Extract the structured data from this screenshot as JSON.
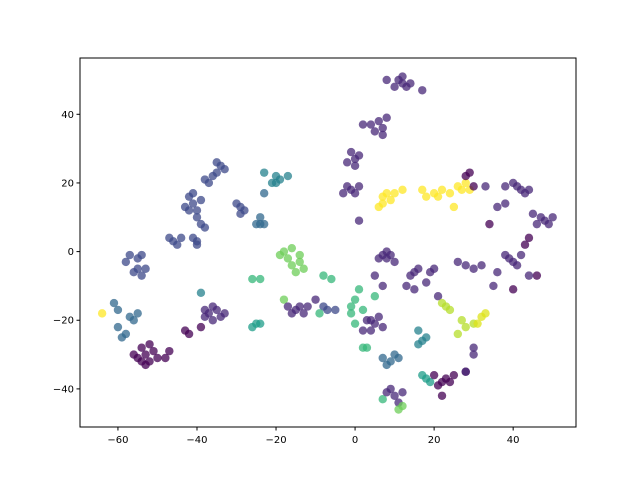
{
  "chart_data": {
    "type": "scatter",
    "x": [
      -53,
      -54,
      -52,
      -55,
      -51,
      -53,
      -56,
      -50,
      -52,
      -54,
      -47,
      -48,
      -42,
      -43,
      -39,
      -60,
      -57,
      -60,
      -58,
      -55,
      -61,
      -56,
      -59,
      -64,
      -55,
      -54,
      -56,
      -53,
      -55,
      -57,
      -58,
      -54,
      -46,
      -47,
      -45,
      -44,
      -40,
      -41,
      -40,
      -41,
      -42,
      -40,
      -39,
      -43,
      -41,
      -40,
      -38,
      -39,
      -42,
      -35,
      -34,
      -36,
      -37,
      -33,
      -35,
      -38,
      -29,
      -30,
      -28,
      -29,
      -24,
      -25,
      -23,
      -24,
      -23,
      -20,
      -23,
      -21,
      -19,
      -17,
      -20,
      -37,
      -36,
      -38,
      -35,
      -33,
      -34,
      -36,
      -38,
      -39,
      -25,
      -26,
      -24,
      -24,
      -26,
      -17,
      -18,
      -16,
      -14,
      -15,
      -13,
      -19,
      -16,
      -18,
      -14,
      -15,
      -16,
      -14,
      -13,
      -17,
      -12,
      -10,
      -8,
      -7,
      -5,
      -8,
      -6,
      -9,
      0,
      1,
      -1,
      2,
      0,
      -1,
      5,
      2,
      3,
      7,
      5,
      4,
      6,
      4,
      3,
      2,
      7,
      0,
      -1,
      1,
      0,
      -2,
      -1,
      -3,
      -2,
      1,
      0,
      7,
      6,
      8,
      5,
      7,
      4,
      2,
      1,
      12,
      11,
      13,
      12,
      10,
      8,
      17,
      14,
      8,
      7,
      10,
      6,
      9,
      12,
      7,
      18,
      20,
      22,
      17,
      24,
      27,
      28,
      26,
      29,
      25,
      21,
      7,
      8,
      6,
      9,
      5,
      7,
      10,
      8,
      9,
      10,
      8,
      11,
      7,
      16,
      17,
      18,
      16,
      9,
      8,
      10,
      12,
      11,
      12,
      11,
      18,
      19,
      17,
      15,
      16,
      14,
      20,
      19,
      15,
      13,
      18,
      21,
      22,
      23,
      21,
      24,
      22,
      25,
      20,
      28,
      23,
      24,
      22,
      28,
      27,
      30,
      26,
      33,
      32,
      31,
      28,
      29,
      30,
      44,
      43,
      46,
      40,
      34,
      33,
      38,
      42,
      41,
      43,
      40,
      44,
      38,
      36,
      48,
      47,
      49,
      46,
      50,
      45,
      40,
      39,
      41,
      38,
      42,
      44,
      30,
      26,
      32,
      28,
      30,
      28,
      30,
      35,
      36
    ],
    "y": [
      -30,
      -28,
      -32,
      -31,
      -29,
      -33,
      -30,
      -31,
      -27,
      -32,
      -29,
      -31,
      -24,
      -23,
      -22,
      -17,
      -19,
      -22,
      -24,
      -18,
      -15,
      -20,
      -25,
      -18,
      -5,
      -7,
      -6,
      -5,
      -2,
      -1,
      -3,
      -1,
      3,
      4,
      2,
      4,
      3,
      4,
      2,
      14,
      16,
      12,
      15,
      13,
      17,
      10,
      7,
      8,
      12,
      23,
      25,
      22,
      20,
      24,
      26,
      21,
      13,
      14,
      12,
      11,
      8,
      8,
      8,
      10,
      17,
      22,
      23,
      20,
      21,
      22,
      20,
      -18,
      -20,
      -17,
      -17,
      -18,
      -19,
      -16,
      -19,
      -12,
      -21,
      -22,
      -21,
      -8,
      -8,
      -2,
      0,
      -4,
      -3,
      -6,
      -5,
      -1,
      1,
      -14,
      -1,
      -17,
      -18,
      -16,
      -18,
      -16,
      -16,
      -14,
      -16,
      -17,
      -17,
      -7,
      -8,
      -18,
      -14,
      -11,
      -16,
      -17,
      -21,
      -18,
      -13,
      -28,
      -28,
      -43,
      -21,
      -20,
      -19,
      -23,
      -20,
      -23,
      -22,
      27,
      29,
      28,
      25,
      26,
      18,
      17,
      19,
      19,
      17,
      36,
      38,
      39,
      35,
      34,
      37,
      37,
      9,
      49,
      50,
      48,
      51,
      48,
      50,
      47,
      49,
      17,
      14,
      17,
      13,
      15,
      18,
      16,
      16,
      17,
      18,
      18,
      17,
      18,
      20,
      19,
      18,
      13,
      16,
      -1,
      0,
      -2,
      -1,
      -7,
      -10,
      -3,
      -2,
      -32,
      -30,
      -33,
      -31,
      -31,
      -23,
      -26,
      -25,
      -27,
      -40,
      -41,
      -42,
      -41,
      -44,
      -45,
      -46,
      -37,
      -38,
      -36,
      -6,
      -5,
      -7,
      -5,
      -6,
      -11,
      -10,
      -9,
      -13,
      -38,
      -37,
      -39,
      -38,
      -42,
      -36,
      -36,
      -35,
      -16,
      -17,
      -15,
      -22,
      -20,
      -21,
      -24,
      -18,
      -19,
      -21,
      22,
      23,
      19,
      4,
      2,
      -7,
      -11,
      8,
      19,
      19,
      18,
      19,
      17,
      20,
      18,
      14,
      13,
      9,
      10,
      8,
      8,
      10,
      11,
      -3,
      -2,
      -4,
      -1,
      -1,
      -7,
      -5,
      -3,
      -4,
      -4,
      -28,
      -35,
      -30,
      -10,
      -6
    ],
    "colors": [
      "#440154",
      "#440154",
      "#440154",
      "#440154",
      "#440154",
      "#440154",
      "#440154",
      "#440154",
      "#440154",
      "#440154",
      "#440154",
      "#440154",
      "#440154",
      "#440154",
      "#440154",
      "#31688e",
      "#31688e",
      "#31688e",
      "#31688e",
      "#31688e",
      "#31688e",
      "#31688e",
      "#31688e",
      "#fde725",
      "#3e4989",
      "#3e4989",
      "#3e4989",
      "#3e4989",
      "#3e4989",
      "#3e4989",
      "#3e4989",
      "#3e4989",
      "#3e4989",
      "#3e4989",
      "#3e4989",
      "#3e4989",
      "#3e4989",
      "#3e4989",
      "#3e4989",
      "#3e4989",
      "#3e4989",
      "#3e4989",
      "#3e4989",
      "#3e4989",
      "#3e4989",
      "#3e4989",
      "#3e4989",
      "#3e4989",
      "#3e4989",
      "#3e4989",
      "#3e4989",
      "#3e4989",
      "#3e4989",
      "#3e4989",
      "#3e4989",
      "#3e4989",
      "#3e4989",
      "#3e4989",
      "#3e4989",
      "#3e4989",
      "#31688e",
      "#31688e",
      "#31688e",
      "#31688e",
      "#31688e",
      "#26828e",
      "#26828e",
      "#26828e",
      "#26828e",
      "#26828e",
      "#26828e",
      "#482878",
      "#482878",
      "#482878",
      "#482878",
      "#482878",
      "#482878",
      "#482878",
      "#482878",
      "#26828e",
      "#1f9e89",
      "#1f9e89",
      "#1f9e89",
      "#35b779",
      "#35b779",
      "#6ece58",
      "#6ece58",
      "#6ece58",
      "#6ece58",
      "#6ece58",
      "#6ece58",
      "#6ece58",
      "#6ece58",
      "#6ece58",
      "#6ece58",
      "#482878",
      "#482878",
      "#482878",
      "#482878",
      "#482878",
      "#482878",
      "#482878",
      "#3e4989",
      "#3e4989",
      "#3e4989",
      "#35b779",
      "#35b779",
      "#35b779",
      "#35b779",
      "#35b779",
      "#35b779",
      "#35b779",
      "#35b779",
      "#35b779",
      "#35b779",
      "#35b779",
      "#35b779",
      "#35b779",
      "#482878",
      "#482878",
      "#482878",
      "#482878",
      "#482878",
      "#482878",
      "#482878",
      "#482878",
      "#482878",
      "#482878",
      "#482878",
      "#482878",
      "#482878",
      "#482878",
      "#482878",
      "#482878",
      "#482878",
      "#482878",
      "#482878",
      "#482878",
      "#482878",
      "#482878",
      "#482878",
      "#482878",
      "#482878",
      "#482878",
      "#482878",
      "#482878",
      "#482878",
      "#482878",
      "#482878",
      "#482878",
      "#482878",
      "#fde725",
      "#fde725",
      "#fde725",
      "#fde725",
      "#fde725",
      "#fde725",
      "#fde725",
      "#fde725",
      "#fde725",
      "#fde725",
      "#fde725",
      "#fde725",
      "#fde725",
      "#fde725",
      "#fde725",
      "#fde725",
      "#fde725",
      "#fde725",
      "#482878",
      "#482878",
      "#482878",
      "#482878",
      "#482878",
      "#482878",
      "#482878",
      "#482878",
      "#31688e",
      "#31688e",
      "#31688e",
      "#31688e",
      "#31688e",
      "#26828e",
      "#26828e",
      "#26828e",
      "#26828e",
      "#482878",
      "#482878",
      "#482878",
      "#482878",
      "#482878",
      "#6ece58",
      "#6ece58",
      "#1f9e89",
      "#1f9e89",
      "#1f9e89",
      "#482878",
      "#482878",
      "#482878",
      "#482878",
      "#482878",
      "#482878",
      "#482878",
      "#482878",
      "#482878",
      "#440154",
      "#440154",
      "#440154",
      "#440154",
      "#440154",
      "#440154",
      "#440154",
      "#440154",
      "#b5de2b",
      "#b5de2b",
      "#b5de2b",
      "#b5de2b",
      "#b5de2b",
      "#b5de2b",
      "#b5de2b",
      "#dde318",
      "#dde318",
      "#dde318",
      "#440154",
      "#440154",
      "#440154",
      "#440154",
      "#440154",
      "#440154",
      "#440154",
      "#440154",
      "#482878",
      "#482878",
      "#482878",
      "#482878",
      "#482878",
      "#482878",
      "#482878",
      "#482878",
      "#482878",
      "#482878",
      "#482878",
      "#482878",
      "#482878",
      "#482878",
      "#482878",
      "#482878",
      "#482878",
      "#482878",
      "#482878",
      "#482878",
      "#482878",
      "#482878",
      "#482878",
      "#482878",
      "#482878",
      "#482878",
      "#482878",
      "#482878",
      "#482878",
      "#482878"
    ],
    "xlim": [
      -69.6,
      55.9
    ],
    "ylim": [
      -51.1,
      56.4
    ],
    "xticks": [
      {
        "value": -60,
        "label": "−60"
      },
      {
        "value": -40,
        "label": "−40"
      },
      {
        "value": -20,
        "label": "−20"
      },
      0,
      20,
      40
    ],
    "yticks": [
      {
        "value": -40,
        "label": "−40"
      },
      {
        "value": -20,
        "label": "−20"
      },
      0,
      20,
      40
    ],
    "grid": false
  }
}
